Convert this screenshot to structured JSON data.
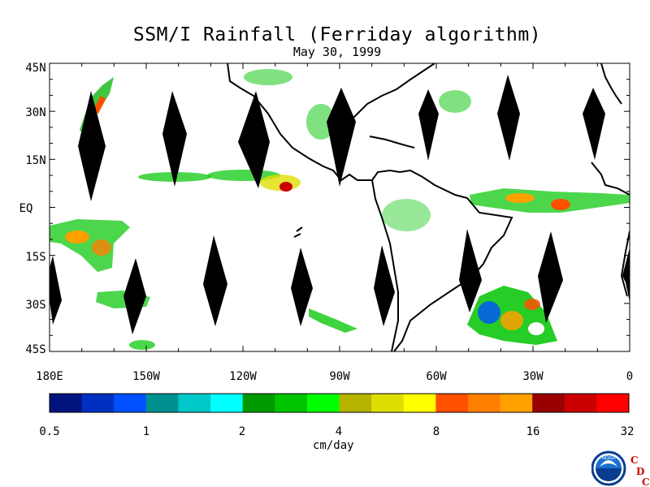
{
  "title": "SSM/I Rainfall (Ferriday algorithm)",
  "subtitle": "May 30, 1999",
  "map": {
    "lon_range": [
      "180E",
      "0"
    ],
    "lat_range": [
      "45S",
      "45N"
    ],
    "y_tick_labels": [
      "45N",
      "30N",
      "15N",
      "EQ",
      "15S",
      "30S",
      "45S"
    ],
    "x_tick_labels": [
      "180E",
      "150W",
      "120W",
      "90W",
      "60W",
      "30W",
      "0"
    ],
    "coastline_color": "#000000",
    "swath_gap_color": "#000000"
  },
  "colorbar": {
    "units": "cm/day",
    "tick_labels": [
      "0.5",
      "1",
      "2",
      "4",
      "8",
      "16",
      "32"
    ],
    "colors": [
      "#00137f",
      "#0030c0",
      "#0050ff",
      "#009090",
      "#00c8c8",
      "#00ffff",
      "#009900",
      "#00c400",
      "#00ff00",
      "#b3b300",
      "#dede00",
      "#ffff00",
      "#ff5000",
      "#ff7f00",
      "#ffa000",
      "#990000",
      "#cc0000",
      "#ff0000"
    ]
  },
  "logo": {
    "emblem": "NOAA",
    "letters": [
      "C",
      "D",
      "C"
    ]
  }
}
